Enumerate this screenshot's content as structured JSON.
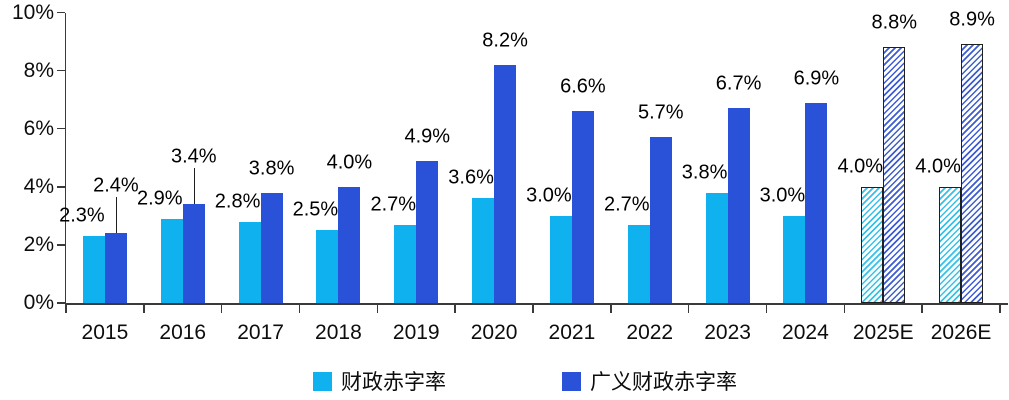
{
  "chart_data": {
    "type": "bar",
    "title": "",
    "categories": [
      "2015",
      "2016",
      "2017",
      "2018",
      "2019",
      "2020",
      "2021",
      "2022",
      "2023",
      "2024",
      "2025E",
      "2026E"
    ],
    "series": [
      {
        "name": "财政赤字率",
        "color": "#0fb1ef",
        "values": [
          2.3,
          2.9,
          2.8,
          2.5,
          2.7,
          3.6,
          3.0,
          2.7,
          3.8,
          3.0,
          4.0,
          4.0
        ]
      },
      {
        "name": "广义财政赤字率",
        "color": "#2a52d8",
        "values": [
          2.4,
          3.4,
          3.8,
          4.0,
          4.9,
          8.2,
          6.6,
          5.7,
          6.7,
          6.9,
          8.8,
          8.9
        ]
      }
    ],
    "label_format": "{value}%",
    "forecast_categories": [
      "2025E",
      "2026E"
    ],
    "callout_categories": [
      "2015",
      "2016"
    ],
    "y_axis": {
      "min": 0,
      "max": 10,
      "step": 2,
      "tick_labels": [
        "0%",
        "2%",
        "4%",
        "6%",
        "8%",
        "10%"
      ]
    },
    "xlabel": "",
    "ylabel": "",
    "grid": "off",
    "legend_position": "bottom"
  },
  "colors": {
    "axis": "#3a3a3a",
    "text": "#0d0d0d",
    "hatch_border": "#1f1f1f"
  }
}
